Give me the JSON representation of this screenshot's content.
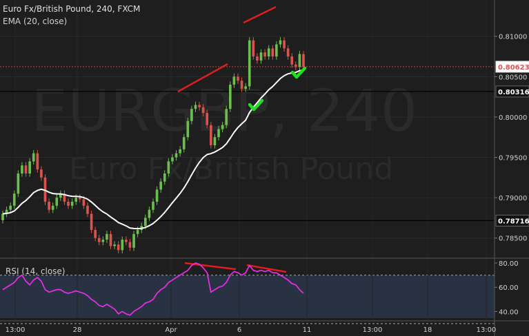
{
  "header": {
    "symbol": "Euro Fx/British Pound, 240, FXCM",
    "indicator": "EMA (20, close)"
  },
  "watermark": {
    "ticker": "EURGBP, 240",
    "name": "Euro Fx/British Pound"
  },
  "rsi_label": "RSI (14, close)",
  "colors": {
    "background": "#1e1e1e",
    "up_candle": "#6cbf4f",
    "down_candle": "#d9534f",
    "ema": "#ffffff",
    "rsi": "#e02fe0",
    "trendline": "#e01e1e",
    "checkmark": "#22dd22",
    "rsi_panel": "#283242"
  },
  "chart_data": [
    {
      "type": "candlestick",
      "title": "Euro Fx/British Pound, 240, FXCM",
      "ylim": [
        0.7825,
        0.8145
      ],
      "y_ticks": [
        "0.81000",
        "0.80500",
        "0.80000",
        "0.79500",
        "0.79000",
        "0.78500"
      ],
      "x_ticks": [
        "13:00",
        "28",
        "Apr",
        "6",
        "11",
        "13:00",
        "18",
        "13:00"
      ],
      "price_labels": [
        {
          "text": "0.80623",
          "value": 0.80623,
          "highlight": true
        },
        {
          "text": "0.80316",
          "value": 0.80316,
          "highlight": false
        },
        {
          "text": "0.78716",
          "value": 0.78716,
          "highlight": false
        }
      ],
      "horizontal_lines": [
        0.80316,
        0.78716
      ],
      "current_price_line": 0.80623,
      "close": [
        0.788,
        0.7885,
        0.789,
        0.7905,
        0.793,
        0.794,
        0.793,
        0.7945,
        0.7955,
        0.7935,
        0.7925,
        0.7895,
        0.7885,
        0.789,
        0.79,
        0.7905,
        0.7895,
        0.789,
        0.7895,
        0.79,
        0.7898,
        0.789,
        0.788,
        0.786,
        0.785,
        0.7845,
        0.7848,
        0.7855,
        0.784,
        0.7842,
        0.7835,
        0.7848,
        0.7845,
        0.7838,
        0.7855,
        0.786,
        0.7865,
        0.7875,
        0.7885,
        0.7895,
        0.791,
        0.792,
        0.793,
        0.7945,
        0.795,
        0.7955,
        0.796,
        0.7975,
        0.7995,
        0.801,
        0.8015,
        0.8012,
        0.8005,
        0.799,
        0.7965,
        0.7975,
        0.7985,
        0.799,
        0.801,
        0.804,
        0.805,
        0.8045,
        0.8035,
        0.8038,
        0.8095,
        0.8075,
        0.807,
        0.808,
        0.8075,
        0.8085,
        0.8075,
        0.809,
        0.8095,
        0.8085,
        0.8075,
        0.8065,
        0.8062,
        0.8078,
        0.8062
      ],
      "ema_range": [
        0.7843,
        0.806
      ],
      "annotations": [
        "trendline",
        "trendline",
        "trendline",
        "checkmark",
        "checkmark"
      ]
    },
    {
      "type": "line",
      "title": "RSI (14, close)",
      "ylim": [
        30,
        84
      ],
      "y_ticks": [
        "80.00",
        "60.00",
        "40.00"
      ],
      "bands": [
        70,
        30
      ],
      "values": [
        58,
        60,
        62,
        64,
        68,
        70,
        65,
        62,
        66,
        68,
        65,
        58,
        56,
        57,
        58,
        58,
        56,
        55,
        56,
        57,
        56,
        55,
        53,
        50,
        48,
        45,
        44,
        46,
        44,
        42,
        38,
        40,
        38,
        37,
        40,
        42,
        44,
        47,
        48,
        50,
        55,
        58,
        60,
        64,
        66,
        68,
        70,
        72,
        74,
        78,
        80,
        79,
        76,
        72,
        56,
        58,
        60,
        61,
        64,
        70,
        73,
        72,
        70,
        72,
        78,
        74,
        73,
        74,
        73,
        74,
        72,
        72,
        70,
        68,
        66,
        63,
        62,
        58,
        55
      ],
      "annotations": [
        "trendline",
        "trendline"
      ]
    }
  ]
}
